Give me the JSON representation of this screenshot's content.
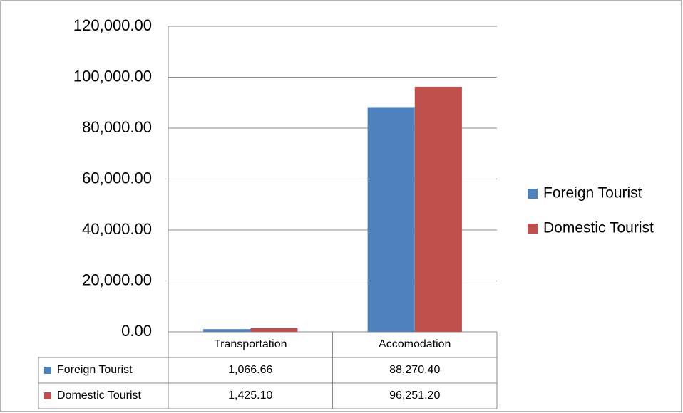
{
  "chart_data": {
    "type": "bar",
    "categories": [
      "Transportation",
      "Accomodation"
    ],
    "series": [
      {
        "name": "Foreign Tourist",
        "color": "#4f81bd",
        "values": [
          1066.66,
          88270.4
        ],
        "value_labels": [
          "1,066.66",
          "88,270.40"
        ]
      },
      {
        "name": "Domestic Tourist",
        "color": "#c0504d",
        "values": [
          1425.1,
          96251.2
        ],
        "value_labels": [
          "1,425.10",
          "96,251.20"
        ]
      }
    ],
    "ylim": [
      0,
      120000
    ],
    "yticks": [
      {
        "value": 0,
        "label": "0.00"
      },
      {
        "value": 20000,
        "label": "20,000.00"
      },
      {
        "value": 40000,
        "label": "40,000.00"
      },
      {
        "value": 60000,
        "label": "60,000.00"
      },
      {
        "value": 80000,
        "label": "80,000.00"
      },
      {
        "value": 100000,
        "label": "100,000.00"
      },
      {
        "value": 120000,
        "label": "120,000.00"
      }
    ],
    "grid": true,
    "legend": "right"
  }
}
